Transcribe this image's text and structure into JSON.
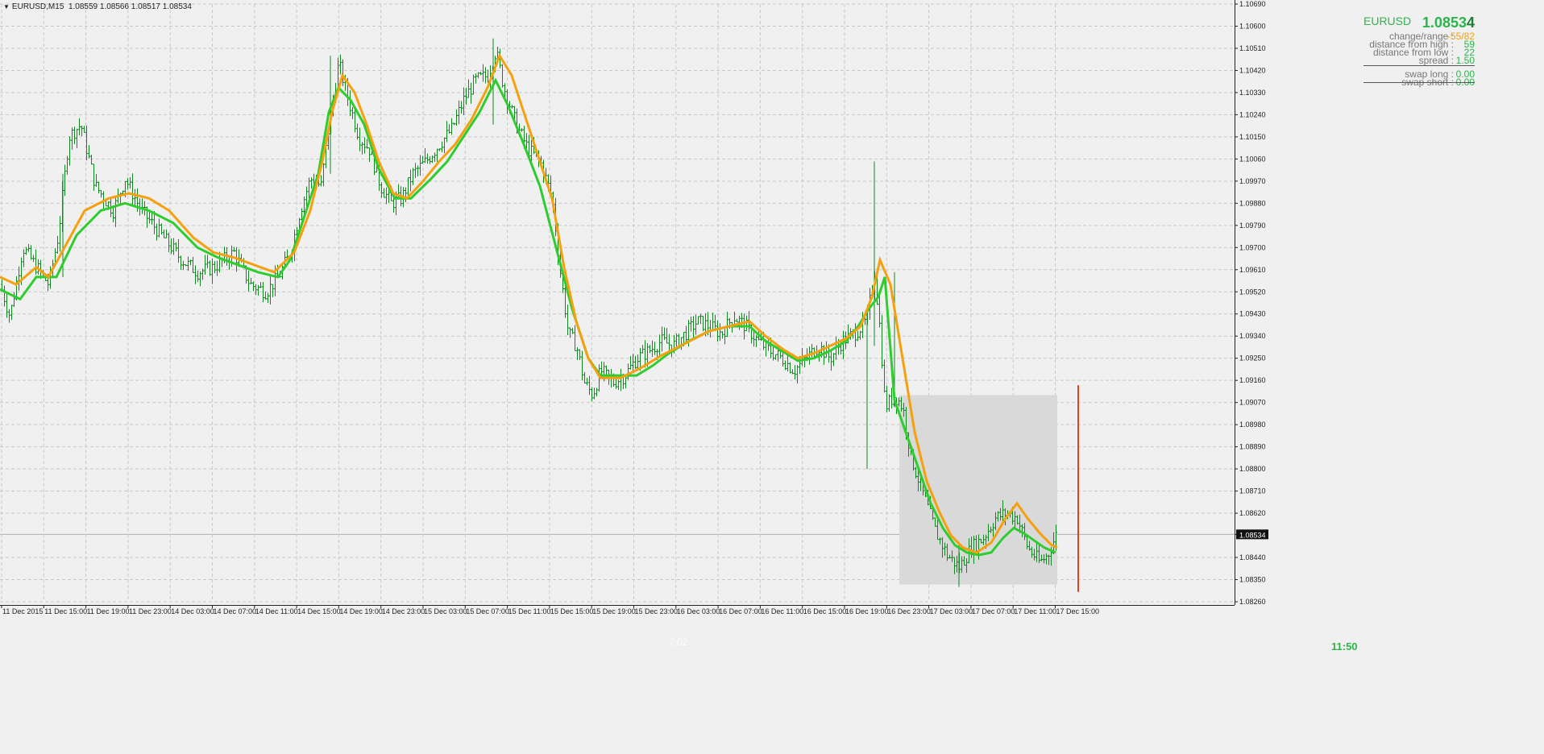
{
  "header": {
    "symbol_period": "EURUSD,M15",
    "ohlc": "1.08559 1.08566 1.08517 1.08534"
  },
  "panel": {
    "symbol": "EURUSD",
    "price_main": "1.0853",
    "price_last_digit": "4",
    "rows": [
      {
        "label": "change/range",
        "value": "-55/82",
        "color": "#f5a00f"
      },
      {
        "label": "distance from high",
        "value": "59",
        "color": "#2bb54b"
      },
      {
        "label": "distance from low",
        "value": "22",
        "color": "#2bb54b"
      },
      {
        "label": "spread",
        "value": "1.50",
        "color": "#2bb54b"
      },
      {
        "label": "swap long",
        "value": "0.00",
        "color": "#2bb54b"
      },
      {
        "label": "swap short",
        "value": "0.00",
        "color": "#2bb54b"
      }
    ]
  },
  "timer": "11:50",
  "watermark": "7:02",
  "colors": {
    "candles": "#0f8a1f",
    "ma_fast": "#2ecc2e",
    "ma_slow": "#f5a00f",
    "range_box": "#d9d9d9",
    "marker": "#e8401c",
    "grid": "#c8c8c8"
  },
  "chart_data": {
    "type": "candlestick",
    "symbol": "EURUSD",
    "timeframe": "M15",
    "current_price": 1.08534,
    "y_ticks": [
      "1.10690",
      "1.10600",
      "1.10510",
      "1.10420",
      "1.10330",
      "1.10240",
      "1.10150",
      "1.10060",
      "1.09970",
      "1.09880",
      "1.09790",
      "1.09700",
      "1.09610",
      "1.09520",
      "1.09430",
      "1.09340",
      "1.09250",
      "1.09160",
      "1.09070",
      "1.08980",
      "1.08890",
      "1.08800",
      "1.08710",
      "1.08620",
      "1.08534",
      "1.08440",
      "1.08350",
      "1.08260"
    ],
    "x_ticks": [
      "11 Dec 2015",
      "11 Dec 15:00",
      "11 Dec 19:00",
      "11 Dec 23:00",
      "14 Dec 03:00",
      "14 Dec 07:00",
      "14 Dec 11:00",
      "14 Dec 15:00",
      "14 Dec 19:00",
      "14 Dec 23:00",
      "15 Dec 03:00",
      "15 Dec 07:00",
      "15 Dec 11:00",
      "15 Dec 15:00",
      "15 Dec 19:00",
      "15 Dec 23:00",
      "16 Dec 03:00",
      "16 Dec 07:00",
      "16 Dec 11:00",
      "16 Dec 15:00",
      "16 Dec 19:00",
      "16 Dec 23:00",
      "17 Dec 03:00",
      "17 Dec 07:00",
      "17 Dec 11:00",
      "17 Dec 15:00"
    ],
    "ylim": [
      1.0826,
      1.1069
    ],
    "price_path": [
      [
        0,
        1.0955
      ],
      [
        12,
        1.0942
      ],
      [
        28,
        1.097
      ],
      [
        45,
        1.0962
      ],
      [
        60,
        1.0955
      ],
      [
        72,
        1.0975
      ],
      [
        85,
        1.1015
      ],
      [
        100,
        1.102
      ],
      [
        118,
        1.0995
      ],
      [
        140,
        1.0985
      ],
      [
        155,
        1.0998
      ],
      [
        175,
        1.0985
      ],
      [
        200,
        1.0975
      ],
      [
        225,
        1.0965
      ],
      [
        245,
        1.096
      ],
      [
        265,
        1.0962
      ],
      [
        290,
        1.0968
      ],
      [
        310,
        1.0955
      ],
      [
        330,
        1.0952
      ],
      [
        345,
        1.0958
      ],
      [
        360,
        1.0968
      ],
      [
        372,
        1.0985
      ],
      [
        385,
        1.0998
      ],
      [
        398,
        1.0995
      ],
      [
        408,
        1.102
      ],
      [
        420,
        1.1045
      ],
      [
        432,
        1.103
      ],
      [
        445,
        1.1015
      ],
      [
        458,
        1.101
      ],
      [
        472,
        1.0995
      ],
      [
        485,
        1.0988
      ],
      [
        498,
        1.099
      ],
      [
        512,
        1.1
      ],
      [
        528,
        1.1005
      ],
      [
        545,
        1.1012
      ],
      [
        560,
        1.1018
      ],
      [
        575,
        1.103
      ],
      [
        590,
        1.1038
      ],
      [
        605,
        1.104
      ],
      [
        615,
        1.105
      ],
      [
        625,
        1.1035
      ],
      [
        640,
        1.102
      ],
      [
        655,
        1.101
      ],
      [
        670,
        1.1005
      ],
      [
        685,
        1.099
      ],
      [
        695,
        1.096
      ],
      [
        705,
        1.0935
      ],
      [
        715,
        1.093
      ],
      [
        725,
        1.0915
      ],
      [
        735,
        1.091
      ],
      [
        745,
        1.092
      ],
      [
        760,
        1.0915
      ],
      [
        775,
        1.0918
      ],
      [
        790,
        1.0925
      ],
      [
        805,
        1.0928
      ],
      [
        820,
        1.0932
      ],
      [
        835,
        1.093
      ],
      [
        850,
        1.0935
      ],
      [
        865,
        1.094
      ],
      [
        880,
        1.0938
      ],
      [
        895,
        1.0935
      ],
      [
        910,
        1.0942
      ],
      [
        925,
        1.0938
      ],
      [
        940,
        1.0932
      ],
      [
        955,
        1.0928
      ],
      [
        970,
        1.0925
      ],
      [
        985,
        1.092
      ],
      [
        1000,
        1.0925
      ],
      [
        1015,
        1.093
      ],
      [
        1030,
        1.0925
      ],
      [
        1045,
        1.0932
      ],
      [
        1060,
        1.0935
      ],
      [
        1075,
        1.094
      ],
      [
        1085,
        1.096
      ],
      [
        1092,
        1.0935
      ],
      [
        1098,
        1.0905
      ],
      [
        1110,
        1.091
      ],
      [
        1120,
        1.0905
      ],
      [
        1130,
        1.0885
      ],
      [
        1145,
        1.087
      ],
      [
        1160,
        1.0855
      ],
      [
        1175,
        1.0845
      ],
      [
        1190,
        1.084
      ],
      [
        1205,
        1.0848
      ],
      [
        1220,
        1.0852
      ],
      [
        1235,
        1.086
      ],
      [
        1248,
        1.0862
      ],
      [
        1262,
        1.086
      ],
      [
        1275,
        1.0848
      ],
      [
        1290,
        1.0842
      ],
      [
        1300,
        1.0845
      ],
      [
        1310,
        1.0853
      ]
    ],
    "series": [
      {
        "name": "",
        "color": "#2ecc2e",
        "points": [
          [
            0,
            1.0953
          ],
          [
            25,
            1.0949
          ],
          [
            45,
            1.0958
          ],
          [
            70,
            1.0958
          ],
          [
            95,
            1.0975
          ],
          [
            125,
            1.0985
          ],
          [
            155,
            1.0988
          ],
          [
            185,
            1.0985
          ],
          [
            215,
            1.098
          ],
          [
            245,
            1.097
          ],
          [
            270,
            1.0966
          ],
          [
            295,
            1.0963
          ],
          [
            320,
            1.096
          ],
          [
            345,
            1.0958
          ],
          [
            360,
            1.0965
          ],
          [
            380,
            1.0985
          ],
          [
            395,
            1.1
          ],
          [
            408,
            1.1025
          ],
          [
            420,
            1.1035
          ],
          [
            435,
            1.103
          ],
          [
            452,
            1.102
          ],
          [
            470,
            1.1002
          ],
          [
            490,
            1.099
          ],
          [
            510,
            1.099
          ],
          [
            535,
            1.0998
          ],
          [
            555,
            1.1005
          ],
          [
            575,
            1.1015
          ],
          [
            595,
            1.1025
          ],
          [
            615,
            1.1038
          ],
          [
            630,
            1.1028
          ],
          [
            650,
            1.1012
          ],
          [
            670,
            1.0995
          ],
          [
            690,
            1.097
          ],
          [
            710,
            1.0945
          ],
          [
            730,
            1.0925
          ],
          [
            745,
            1.0918
          ],
          [
            765,
            1.0918
          ],
          [
            790,
            1.0918
          ],
          [
            810,
            1.0922
          ],
          [
            830,
            1.0927
          ],
          [
            855,
            1.0932
          ],
          [
            880,
            1.0936
          ],
          [
            905,
            1.0938
          ],
          [
            930,
            1.0938
          ],
          [
            950,
            1.0932
          ],
          [
            970,
            1.0928
          ],
          [
            990,
            1.0924
          ],
          [
            1010,
            1.0925
          ],
          [
            1030,
            1.0928
          ],
          [
            1050,
            1.0932
          ],
          [
            1065,
            1.0938
          ],
          [
            1078,
            1.0945
          ],
          [
            1090,
            1.095
          ],
          [
            1098,
            1.0958
          ]
        ]
      },
      {
        "name": "",
        "color": "#f5a00f",
        "points": [
          [
            0,
            1.0958
          ],
          [
            20,
            1.0955
          ],
          [
            45,
            1.0962
          ],
          [
            60,
            1.0958
          ],
          [
            80,
            1.097
          ],
          [
            105,
            1.0985
          ],
          [
            135,
            1.099
          ],
          [
            160,
            1.0992
          ],
          [
            185,
            1.099
          ],
          [
            210,
            1.0985
          ],
          [
            240,
            1.0974
          ],
          [
            265,
            1.0968
          ],
          [
            290,
            1.0966
          ],
          [
            315,
            1.0963
          ],
          [
            340,
            1.096
          ],
          [
            365,
            1.0968
          ],
          [
            385,
            1.0985
          ],
          [
            400,
            1.1005
          ],
          [
            412,
            1.1025
          ],
          [
            425,
            1.104
          ],
          [
            440,
            1.1033
          ],
          [
            455,
            1.102
          ],
          [
            470,
            1.1005
          ],
          [
            488,
            1.0992
          ],
          [
            505,
            1.099
          ],
          [
            525,
            1.0997
          ],
          [
            545,
            1.1005
          ],
          [
            565,
            1.1012
          ],
          [
            585,
            1.1022
          ],
          [
            605,
            1.1035
          ],
          [
            620,
            1.1048
          ],
          [
            635,
            1.104
          ],
          [
            650,
            1.1025
          ],
          [
            665,
            1.101
          ],
          [
            685,
            1.099
          ],
          [
            700,
            1.0962
          ],
          [
            715,
            1.094
          ],
          [
            730,
            1.0925
          ],
          [
            745,
            1.0917
          ],
          [
            770,
            1.0917
          ],
          [
            795,
            1.0921
          ],
          [
            820,
            1.0926
          ],
          [
            850,
            1.0931
          ],
          [
            880,
            1.0936
          ],
          [
            905,
            1.0938
          ],
          [
            930,
            1.094
          ],
          [
            950,
            1.0934
          ],
          [
            970,
            1.0929
          ],
          [
            990,
            1.0925
          ],
          [
            1010,
            1.0927
          ],
          [
            1030,
            1.093
          ],
          [
            1050,
            1.0933
          ],
          [
            1068,
            1.0938
          ],
          [
            1082,
            1.095
          ],
          [
            1092,
            1.0965
          ],
          [
            1105,
            1.0955
          ],
          [
            1120,
            1.0925
          ],
          [
            1135,
            1.0895
          ],
          [
            1150,
            1.0875
          ],
          [
            1165,
            1.0863
          ],
          [
            1180,
            1.0853
          ],
          [
            1195,
            1.0848
          ],
          [
            1212,
            1.0846
          ],
          [
            1230,
            1.085
          ],
          [
            1248,
            1.086
          ],
          [
            1262,
            1.0866
          ],
          [
            1275,
            1.086
          ],
          [
            1290,
            1.0854
          ],
          [
            1305,
            1.0849
          ],
          [
            1312,
            1.0848
          ]
        ]
      }
    ],
    "ma_green_tail": [
      [
        1110,
        1.0908
      ],
      [
        1125,
        1.0894
      ],
      [
        1140,
        1.088
      ],
      [
        1155,
        1.0866
      ],
      [
        1170,
        1.0856
      ],
      [
        1185,
        1.0849
      ],
      [
        1200,
        1.0846
      ],
      [
        1215,
        1.0845
      ],
      [
        1230,
        1.0846
      ],
      [
        1245,
        1.0852
      ],
      [
        1258,
        1.0856
      ],
      [
        1270,
        1.0854
      ],
      [
        1283,
        1.0851
      ],
      [
        1296,
        1.0848
      ],
      [
        1310,
        1.0846
      ]
    ],
    "range_box": {
      "x_start": 1116,
      "x_end": 1312,
      "high": 1.091,
      "low": 1.0833
    },
    "current_marker_x": 1338
  }
}
